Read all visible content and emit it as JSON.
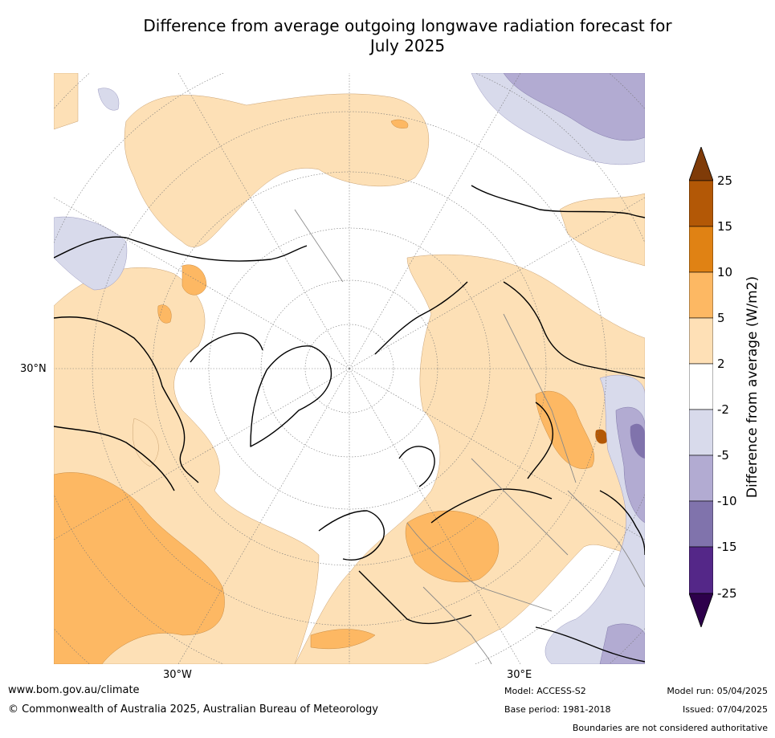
{
  "title_line1": "Difference from average outgoing longwave radiation forecast for",
  "title_line2": "July 2025",
  "map": {
    "lat_label": "30°N",
    "lon_label_left": "30°W",
    "lon_label_right": "30°E",
    "colors": {
      "light_orange": "#fde0b6",
      "orange": "#fdb863",
      "dark_orange": "#e08214",
      "brown": "#b35806",
      "light_purple": "#d8daeb",
      "purple": "#b2abd2",
      "dark_purple": "#8073ac",
      "land_outline": "#000000",
      "grid": "#777777"
    }
  },
  "colorbar": {
    "title": "Difference from average (W/m2)",
    "ticks": [
      "25",
      "15",
      "10",
      "5",
      "2",
      "-2",
      "-5",
      "-10",
      "-15",
      "-25"
    ],
    "bins": [
      {
        "range": "15 to 25",
        "color": "#b35806"
      },
      {
        "range": "10 to 15",
        "color": "#e08214"
      },
      {
        "range": "5 to 10",
        "color": "#fdb863"
      },
      {
        "range": "2 to 5",
        "color": "#fee0b6"
      },
      {
        "range": "-2 to 2",
        "color": "#ffffff"
      },
      {
        "range": "-5 to -2",
        "color": "#d8daeb"
      },
      {
        "range": "-10 to -5",
        "color": "#b2abd2"
      },
      {
        "range": "-15 to -10",
        "color": "#8073ac"
      },
      {
        "range": "-25 to -15",
        "color": "#542788"
      }
    ],
    "over_color": "#7f3b08",
    "under_color": "#2d004b"
  },
  "footer": {
    "website": "www.bom.gov.au/climate",
    "copyright": "© Commonwealth of Australia 2025, Australian Bureau of Meteorology",
    "model": "Model: ACCESS-S2",
    "base_period": "Base period: 1981-2018",
    "model_run": "Model run: 05/04/2025",
    "issued": "Issued: 07/04/2025",
    "boundaries": "Boundaries are not considered authoritative"
  }
}
